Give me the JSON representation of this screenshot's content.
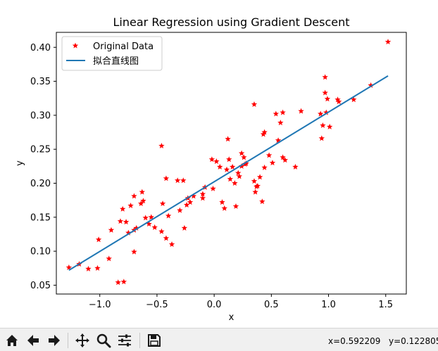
{
  "chart_data": {
    "type": "scatter",
    "title": "Linear Regression using Gradient Descent",
    "xlabel": "x",
    "ylabel": "y",
    "xlim": [
      -1.38,
      1.68
    ],
    "ylim": [
      0.037,
      0.422
    ],
    "xticks": [
      -1.0,
      -0.5,
      0.0,
      0.5,
      1.0,
      1.5
    ],
    "xtick_labels": [
      "−1.0",
      "−0.5",
      "0.0",
      "0.5",
      "1.0",
      "1.5"
    ],
    "yticks": [
      0.05,
      0.1,
      0.15,
      0.2,
      0.25,
      0.3,
      0.35,
      0.4
    ],
    "ytick_labels": [
      "0.05",
      "0.10",
      "0.15",
      "0.20",
      "0.25",
      "0.30",
      "0.35",
      "0.40"
    ],
    "grid": false,
    "legend_position": "upper-left",
    "colors": {
      "points": "#ff0000",
      "line": "#1f77b4"
    },
    "series": [
      {
        "name": "Original Data",
        "kind": "scatter",
        "marker": "star",
        "x": [
          -1.27,
          -1.18,
          -1.1,
          -1.01,
          -1.02,
          -0.92,
          -0.9,
          -0.84,
          -0.82,
          -0.8,
          -0.79,
          -0.77,
          -0.75,
          -0.73,
          -0.7,
          -0.7,
          -0.7,
          -0.68,
          -0.64,
          -0.63,
          -0.62,
          -0.6,
          -0.57,
          -0.55,
          -0.52,
          -0.46,
          -0.46,
          -0.45,
          -0.42,
          -0.42,
          -0.4,
          -0.37,
          -0.32,
          -0.3,
          -0.27,
          -0.26,
          -0.24,
          -0.23,
          -0.21,
          -0.18,
          -0.1,
          -0.1,
          -0.08,
          -0.02,
          -0.01,
          0.02,
          0.05,
          0.07,
          0.09,
          0.11,
          0.12,
          0.13,
          0.14,
          0.16,
          0.18,
          0.19,
          0.21,
          0.22,
          0.24,
          0.24,
          0.26,
          0.27,
          0.28,
          0.35,
          0.35,
          0.36,
          0.37,
          0.38,
          0.4,
          0.42,
          0.43,
          0.44,
          0.44,
          0.48,
          0.51,
          0.54,
          0.56,
          0.58,
          0.6,
          0.6,
          0.62,
          0.71,
          0.76,
          0.93,
          0.94,
          0.95,
          0.97,
          0.97,
          0.98,
          0.99,
          1.01,
          1.08,
          1.09,
          1.22,
          1.37,
          1.52
        ],
        "y": [
          0.076,
          0.081,
          0.074,
          0.117,
          0.075,
          0.089,
          0.131,
          0.054,
          0.144,
          0.162,
          0.055,
          0.143,
          0.127,
          0.167,
          0.181,
          0.131,
          0.099,
          0.134,
          0.17,
          0.187,
          0.174,
          0.149,
          0.14,
          0.15,
          0.135,
          0.129,
          0.255,
          0.17,
          0.207,
          0.119,
          0.152,
          0.11,
          0.204,
          0.16,
          0.204,
          0.134,
          0.168,
          0.178,
          0.172,
          0.181,
          0.184,
          0.178,
          0.194,
          0.235,
          0.192,
          0.232,
          0.224,
          0.172,
          0.163,
          0.22,
          0.265,
          0.235,
          0.206,
          0.224,
          0.2,
          0.166,
          0.215,
          0.21,
          0.244,
          0.225,
          0.238,
          0.228,
          0.229,
          0.316,
          0.203,
          0.187,
          0.195,
          0.196,
          0.209,
          0.173,
          0.272,
          0.275,
          0.223,
          0.241,
          0.23,
          0.302,
          0.263,
          0.289,
          0.304,
          0.238,
          0.234,
          0.224,
          0.306,
          0.302,
          0.266,
          0.285,
          0.356,
          0.333,
          0.304,
          0.324,
          0.283,
          0.323,
          0.32,
          0.323,
          0.344,
          0.408
        ]
      },
      {
        "name": "拟合直线图",
        "kind": "line",
        "x": [
          -1.27,
          1.52
        ],
        "y": [
          0.072,
          0.358
        ]
      }
    ]
  },
  "toolbar": {
    "coord_x": "x=0.592209",
    "coord_y": "y=0.122805"
  }
}
